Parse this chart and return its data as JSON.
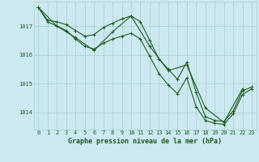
{
  "title": "Graphe pression niveau de la mer (hPa)",
  "background_color": "#cce8f0",
  "grid_color": "#aacccc",
  "line_color": "#1a5c1a",
  "xlim": [
    -0.5,
    23.5
  ],
  "ylim": [
    1013.4,
    1017.85
  ],
  "yticks": [
    1014,
    1015,
    1016,
    1017
  ],
  "xticks": [
    0,
    1,
    2,
    3,
    4,
    5,
    6,
    7,
    8,
    9,
    10,
    11,
    12,
    13,
    14,
    15,
    16,
    17,
    18,
    19,
    20,
    21,
    22,
    23
  ],
  "series": [
    {
      "x": [
        0,
        1,
        2,
        3,
        4,
        5,
        6,
        7,
        8,
        9,
        10,
        11,
        12,
        13,
        14,
        15,
        16,
        17,
        18,
        19,
        20,
        21,
        22,
        23
      ],
      "y": [
        1017.65,
        1017.2,
        1017.15,
        1017.05,
        1016.85,
        1016.65,
        1016.7,
        1016.95,
        1017.1,
        1017.25,
        1017.35,
        1017.15,
        1016.5,
        1015.85,
        1015.5,
        1015.15,
        1015.75,
        1014.7,
        1013.85,
        1013.72,
        1013.68,
        1014.05,
        1014.75,
        1014.88
      ]
    },
    {
      "x": [
        0,
        1,
        2,
        3,
        4,
        5,
        6,
        7,
        8,
        9,
        10,
        11,
        12,
        13,
        14,
        15,
        16,
        17,
        18,
        19,
        20,
        21,
        22,
        23
      ],
      "y": [
        1017.65,
        1017.15,
        1017.0,
        1016.85,
        1016.55,
        1016.3,
        1016.2,
        1016.4,
        1016.55,
        1016.65,
        1016.75,
        1016.55,
        1015.95,
        1015.35,
        1014.95,
        1014.65,
        1015.2,
        1014.2,
        1013.72,
        1013.62,
        1013.58,
        1013.95,
        1014.62,
        1014.82
      ]
    },
    {
      "x": [
        0,
        2,
        4,
        6,
        8,
        10,
        12,
        14,
        16,
        18,
        20,
        22
      ],
      "y": [
        1017.65,
        1017.0,
        1016.6,
        1016.15,
        1016.8,
        1017.35,
        1016.3,
        1015.45,
        1015.65,
        1014.15,
        1013.65,
        1014.82
      ]
    }
  ],
  "marker": "+",
  "markersize": 3,
  "linewidth": 0.8,
  "title_fontsize": 6,
  "tick_fontsize": 5
}
